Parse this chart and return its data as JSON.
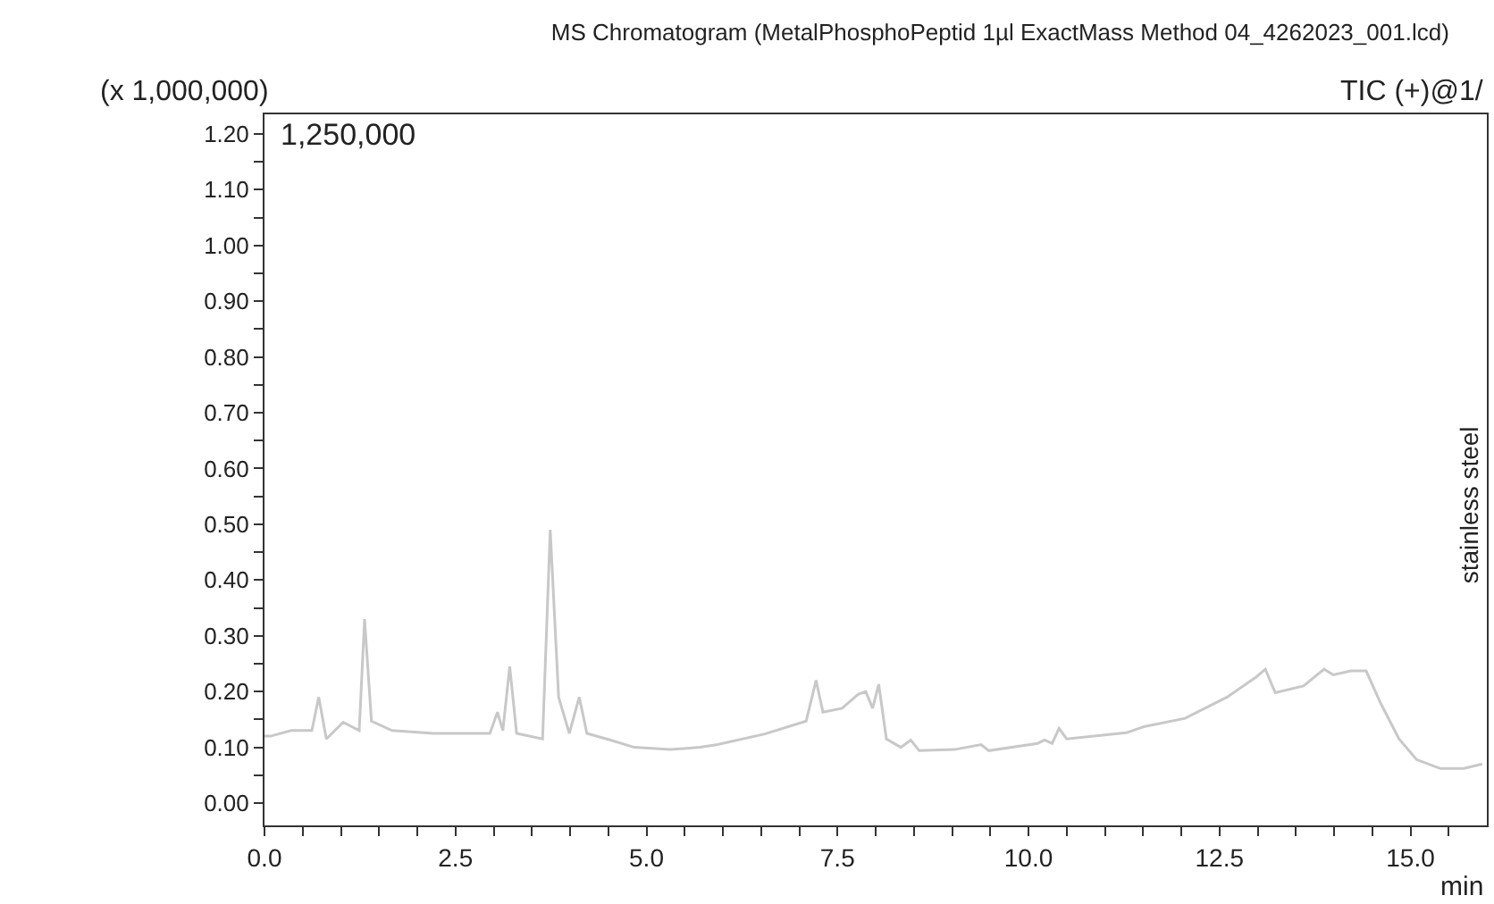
{
  "chart_data": {
    "type": "line",
    "title": "MS Chromatogram (MetalPhosphoPeptid 1µl ExactMass Method 04_4262023_001.lcd)",
    "ylabel": "(x 1,000,000)",
    "xlabel": "min",
    "annotations": [
      "TIC (+)@1/",
      "1,250,000",
      "stainless steel"
    ],
    "series": [
      {
        "color": "#c8c8c8",
        "x": [
          0,
          0.08,
          0.35,
          0.62,
          0.71,
          0.81,
          1.03,
          1.24,
          1.31,
          1.4,
          1.67,
          2.21,
          2.95,
          3.05,
          3.12,
          3.21,
          3.3,
          3.64,
          3.74,
          3.85,
          3.99,
          4.12,
          4.22,
          4.53,
          4.84,
          5.31,
          5.7,
          5.93,
          6.55,
          7.09,
          7.22,
          7.31,
          7.56,
          7.77,
          7.87,
          7.96,
          8.04,
          8.14,
          8.33,
          8.46,
          8.57,
          9.03,
          9.38,
          9.48,
          10.12,
          10.21,
          10.31,
          10.4,
          10.5,
          11.28,
          11.51,
          12.05,
          12.6,
          12.98,
          13.1,
          13.23,
          13.6,
          13.87,
          13.99,
          14.22,
          14.42,
          14.61,
          14.85,
          15.08,
          15.39,
          15.7,
          15.94
        ],
        "values": [
          0.12,
          0.12,
          0.13,
          0.13,
          0.19,
          0.115,
          0.145,
          0.13,
          0.33,
          0.147,
          0.13,
          0.125,
          0.125,
          0.163,
          0.13,
          0.245,
          0.125,
          0.115,
          0.49,
          0.19,
          0.125,
          0.19,
          0.125,
          0.113,
          0.1,
          0.096,
          0.1,
          0.105,
          0.124,
          0.147,
          0.22,
          0.163,
          0.17,
          0.195,
          0.2,
          0.17,
          0.213,
          0.115,
          0.1,
          0.113,
          0.094,
          0.096,
          0.105,
          0.094,
          0.107,
          0.113,
          0.107,
          0.134,
          0.115,
          0.126,
          0.137,
          0.152,
          0.19,
          0.226,
          0.24,
          0.198,
          0.21,
          0.24,
          0.23,
          0.237,
          0.237,
          0.179,
          0.115,
          0.078,
          0.062,
          0.062,
          0.07
        ]
      }
    ],
    "xlim": [
      0,
      16
    ],
    "ylim": [
      -0.04,
      1.235
    ],
    "xticks": [
      {
        "value": 0,
        "label": "0.0"
      },
      {
        "value": 0.5,
        "label": null
      },
      {
        "value": 1,
        "label": null
      },
      {
        "value": 1.5,
        "label": null
      },
      {
        "value": 2,
        "label": null
      },
      {
        "value": 2.5,
        "label": "2.5"
      },
      {
        "value": 3,
        "label": null
      },
      {
        "value": 3.5,
        "label": null
      },
      {
        "value": 4,
        "label": null
      },
      {
        "value": 4.5,
        "label": null
      },
      {
        "value": 5,
        "label": "5.0"
      },
      {
        "value": 5.5,
        "label": null
      },
      {
        "value": 6,
        "label": null
      },
      {
        "value": 6.5,
        "label": null
      },
      {
        "value": 7,
        "label": null
      },
      {
        "value": 7.5,
        "label": "7.5"
      },
      {
        "value": 8,
        "label": null
      },
      {
        "value": 8.5,
        "label": null
      },
      {
        "value": 9,
        "label": null
      },
      {
        "value": 9.5,
        "label": null
      },
      {
        "value": 10,
        "label": "10.0"
      },
      {
        "value": 10.5,
        "label": null
      },
      {
        "value": 11,
        "label": null
      },
      {
        "value": 11.5,
        "label": null
      },
      {
        "value": 12,
        "label": null
      },
      {
        "value": 12.5,
        "label": "12.5"
      },
      {
        "value": 13,
        "label": null
      },
      {
        "value": 13.5,
        "label": null
      },
      {
        "value": 14,
        "label": null
      },
      {
        "value": 14.5,
        "label": null
      },
      {
        "value": 15,
        "label": "15.0"
      },
      {
        "value": 15.5,
        "label": null
      }
    ],
    "yticks": [
      {
        "value": 0,
        "label": "0.00"
      },
      {
        "value": 0.05,
        "label": null
      },
      {
        "value": 0.1,
        "label": "0.10"
      },
      {
        "value": 0.15,
        "label": null
      },
      {
        "value": 0.2,
        "label": "0.20"
      },
      {
        "value": 0.25,
        "label": null
      },
      {
        "value": 0.3,
        "label": "0.30"
      },
      {
        "value": 0.35,
        "label": null
      },
      {
        "value": 0.4,
        "label": "0.40"
      },
      {
        "value": 0.45,
        "label": null
      },
      {
        "value": 0.5,
        "label": "0.50"
      },
      {
        "value": 0.55,
        "label": null
      },
      {
        "value": 0.6,
        "label": "0.60"
      },
      {
        "value": 0.65,
        "label": null
      },
      {
        "value": 0.7,
        "label": "0.70"
      },
      {
        "value": 0.75,
        "label": null
      },
      {
        "value": 0.8,
        "label": "0.80"
      },
      {
        "value": 0.85,
        "label": null
      },
      {
        "value": 0.9,
        "label": "0.90"
      },
      {
        "value": 0.95,
        "label": null
      },
      {
        "value": 1.0,
        "label": "1.00"
      },
      {
        "value": 1.05,
        "label": null
      },
      {
        "value": 1.1,
        "label": "1.10"
      },
      {
        "value": 1.15,
        "label": null
      },
      {
        "value": 1.2,
        "label": "1.20"
      }
    ],
    "grid": false,
    "marker": "none",
    "line_style": "solid"
  }
}
